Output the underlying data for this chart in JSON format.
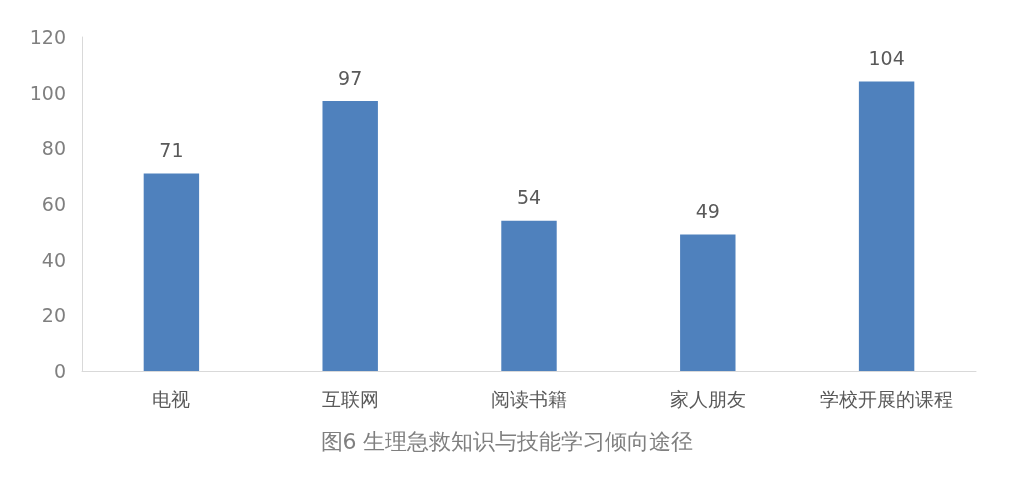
{
  "chart_data": {
    "type": "bar",
    "title": "图6 生理急救知识与技能学习倾向途径",
    "categories": [
      "电视",
      "互联网",
      "阅读书籍",
      "家人朋友",
      "学校开展的课程"
    ],
    "values": [
      71,
      97,
      54,
      49,
      104
    ],
    "color": "#4f81bd",
    "ylim": [
      0,
      120
    ],
    "yticks": [
      0,
      20,
      40,
      60,
      80,
      100,
      120
    ],
    "grid": false,
    "data_labels": true
  }
}
